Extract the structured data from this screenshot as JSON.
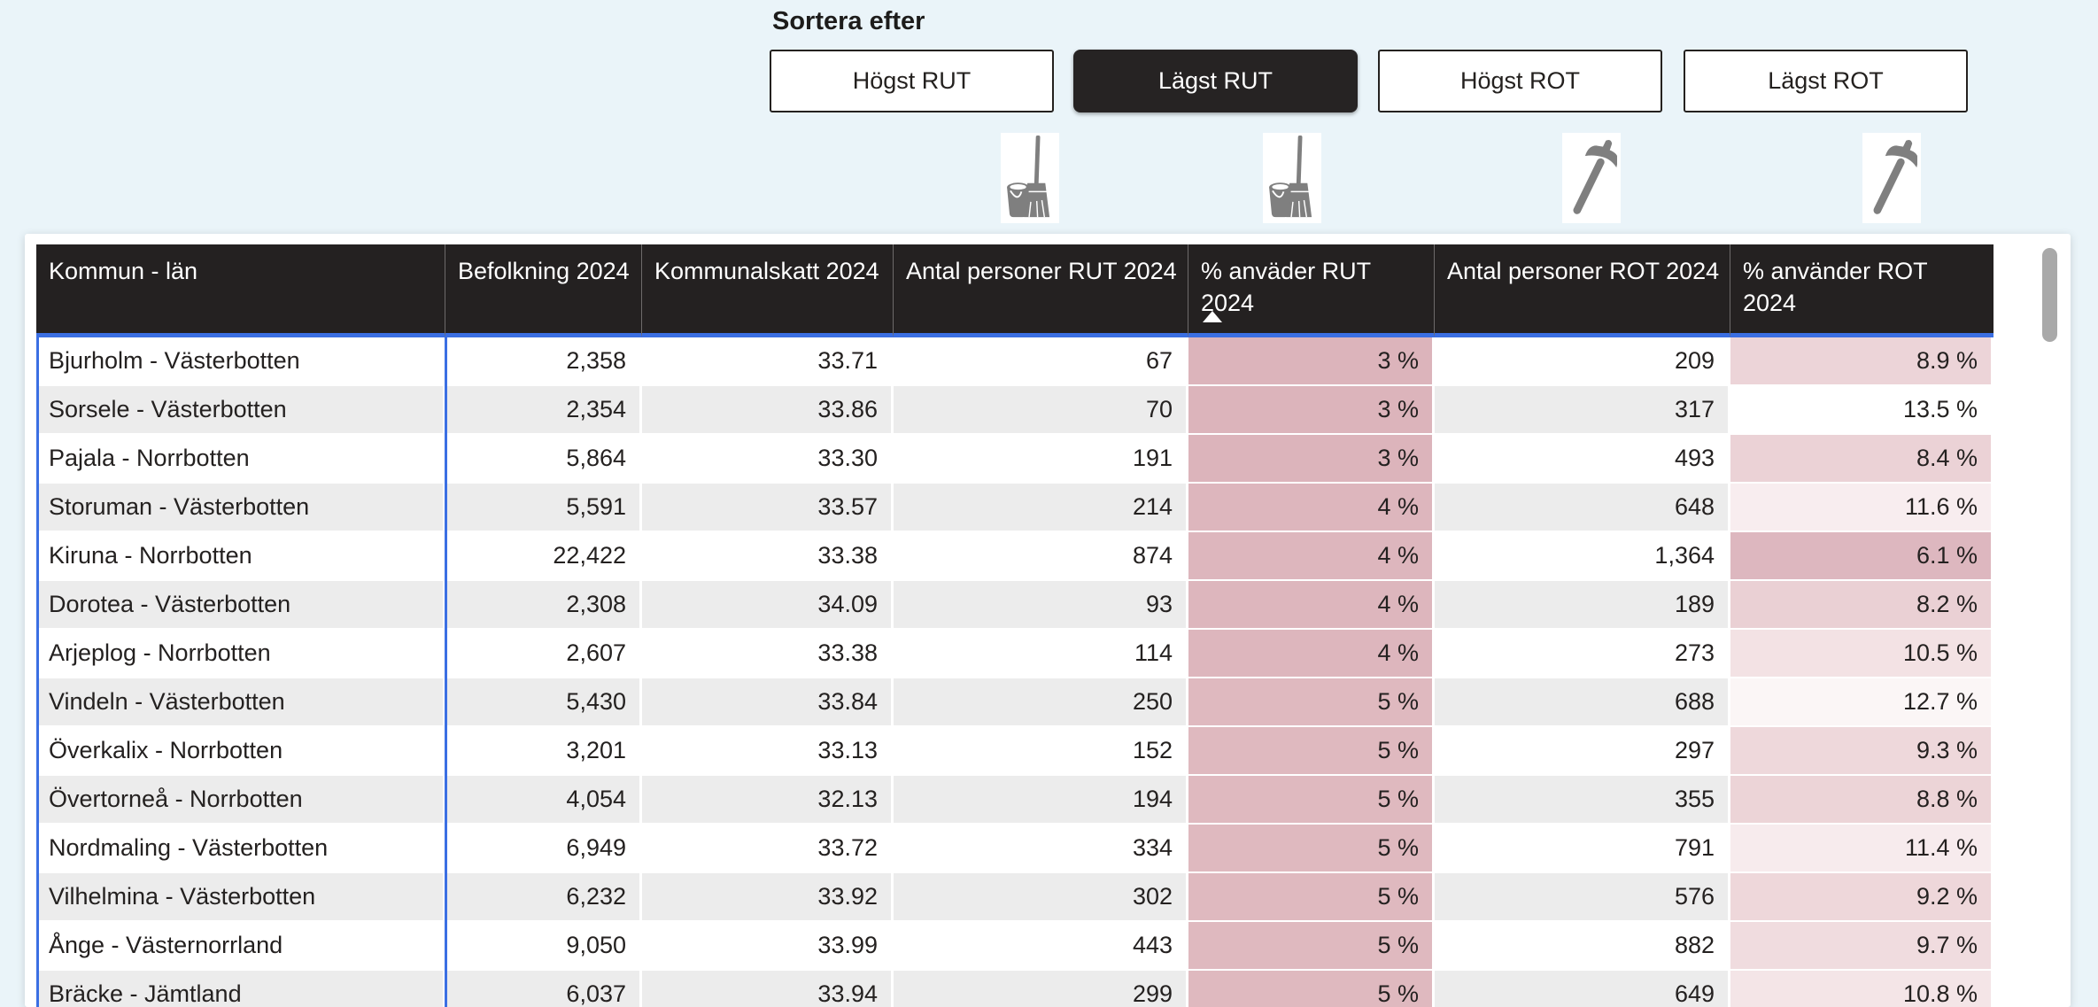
{
  "sort": {
    "label": "Sortera efter",
    "buttons": [
      {
        "label": "Högst RUT",
        "selected": false,
        "icon": "bucket-broom-icon"
      },
      {
        "label": "Lägst RUT",
        "selected": true,
        "icon": "bucket-broom-icon"
      },
      {
        "label": "Högst ROT",
        "selected": false,
        "icon": "hammer-icon"
      },
      {
        "label": "Lägst ROT",
        "selected": false,
        "icon": "hammer-icon"
      }
    ]
  },
  "table": {
    "columns": [
      "Kommun - län",
      "Befolkning 2024",
      "Kommunalskatt 2024",
      "Antal personer RUT 2024",
      "% anväder RUT 2024",
      "Antal personer ROT 2024",
      "% använder ROT 2024"
    ],
    "sorted_column_index": 4,
    "sort_direction": "ascending",
    "rows": [
      {
        "kommun": "Bjurholm - Västerbotten",
        "befolkning": "2,358",
        "skatt": "33.71",
        "rut_antal": "67",
        "rut_pct": "3 %",
        "rot_antal": "209",
        "rot_pct": "8.9 %",
        "rut_bg": "#dcb4bb",
        "rot_bg": "#ecd4d8"
      },
      {
        "kommun": "Sorsele - Västerbotten",
        "befolkning": "2,354",
        "skatt": "33.86",
        "rut_antal": "70",
        "rut_pct": "3 %",
        "rot_antal": "317",
        "rot_pct": "13.5 %",
        "rut_bg": "#dcb4bb",
        "rot_bg": "#ffffff"
      },
      {
        "kommun": "Pajala - Norrbotten",
        "befolkning": "5,864",
        "skatt": "33.30",
        "rut_antal": "191",
        "rut_pct": "3 %",
        "rot_antal": "493",
        "rot_pct": "8.4 %",
        "rut_bg": "#dcb4bb",
        "rot_bg": "#ebd2d6"
      },
      {
        "kommun": "Storuman - Västerbotten",
        "befolkning": "5,591",
        "skatt": "33.57",
        "rut_antal": "214",
        "rut_pct": "4 %",
        "rot_antal": "648",
        "rot_pct": "11.6 %",
        "rut_bg": "#ddb6bd",
        "rot_bg": "#f8edef"
      },
      {
        "kommun": "Kiruna - Norrbotten",
        "befolkning": "22,422",
        "skatt": "33.38",
        "rut_antal": "874",
        "rut_pct": "4 %",
        "rot_antal": "1,364",
        "rot_pct": "6.1 %",
        "rut_bg": "#ddb6bd",
        "rot_bg": "#ddb7bf"
      },
      {
        "kommun": "Dorotea - Västerbotten",
        "befolkning": "2,308",
        "skatt": "34.09",
        "rut_antal": "93",
        "rut_pct": "4 %",
        "rot_antal": "189",
        "rot_pct": "8.2 %",
        "rut_bg": "#ddb6bd",
        "rot_bg": "#ead0d4"
      },
      {
        "kommun": "Arjeplog - Norrbotten",
        "befolkning": "2,607",
        "skatt": "33.38",
        "rut_antal": "114",
        "rut_pct": "4 %",
        "rot_antal": "273",
        "rot_pct": "10.5 %",
        "rut_bg": "#ddb6bd",
        "rot_bg": "#f3e2e4"
      },
      {
        "kommun": "Vindeln - Västerbotten",
        "befolkning": "5,430",
        "skatt": "33.84",
        "rut_antal": "250",
        "rut_pct": "5 %",
        "rot_antal": "688",
        "rot_pct": "12.7 %",
        "rut_bg": "#dfb9bf",
        "rot_bg": "#fbf6f6"
      },
      {
        "kommun": "Överkalix - Norrbotten",
        "befolkning": "3,201",
        "skatt": "33.13",
        "rut_antal": "152",
        "rut_pct": "5 %",
        "rot_antal": "297",
        "rot_pct": "9.3 %",
        "rut_bg": "#dfb9bf",
        "rot_bg": "#eed8db"
      },
      {
        "kommun": "Övertorneå - Norrbotten",
        "befolkning": "4,054",
        "skatt": "32.13",
        "rut_antal": "194",
        "rut_pct": "5 %",
        "rot_antal": "355",
        "rot_pct": "8.8 %",
        "rut_bg": "#dfb9bf",
        "rot_bg": "#ecd4d7"
      },
      {
        "kommun": "Nordmaling - Västerbotten",
        "befolkning": "6,949",
        "skatt": "33.72",
        "rut_antal": "334",
        "rut_pct": "5 %",
        "rot_antal": "791",
        "rot_pct": "11.4 %",
        "rut_bg": "#dfb9bf",
        "rot_bg": "#f7ebed"
      },
      {
        "kommun": "Vilhelmina - Västerbotten",
        "befolkning": "6,232",
        "skatt": "33.92",
        "rut_antal": "302",
        "rut_pct": "5 %",
        "rot_antal": "576",
        "rot_pct": "9.2 %",
        "rut_bg": "#dfb9bf",
        "rot_bg": "#eed7da"
      },
      {
        "kommun": "Ånge - Västernorrland",
        "befolkning": "9,050",
        "skatt": "33.99",
        "rut_antal": "443",
        "rut_pct": "5 %",
        "rot_antal": "882",
        "rot_pct": "9.7 %",
        "rut_bg": "#dfb9bf",
        "rot_bg": "#f0dcdf"
      },
      {
        "kommun": "Bräcke - Jämtland",
        "befolkning": "6,037",
        "skatt": "33.94",
        "rut_antal": "299",
        "rut_pct": "5 %",
        "rot_antal": "649",
        "rot_pct": "10.8 %",
        "rut_bg": "#dfb9bf",
        "rot_bg": "#f4e5e7"
      }
    ]
  },
  "colors": {
    "page_background": "#eaf4f9",
    "header_background": "#242121",
    "selection_blue": "#3b6fe3",
    "alt_row": "#ececec",
    "icon_gray": "#7f7f7f"
  }
}
